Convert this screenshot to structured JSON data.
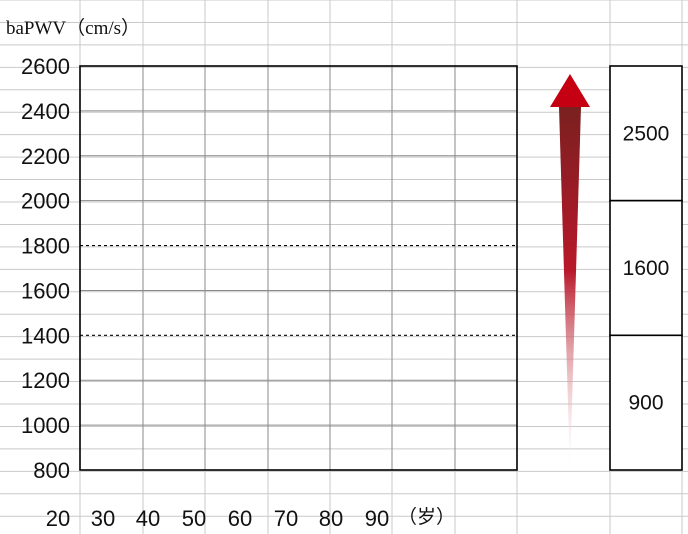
{
  "chart_data": {
    "type": "table",
    "y_axis_label": "baPWV（cm/s）",
    "x_axis_unit": "（岁）",
    "y_ticks": [
      2600,
      2400,
      2200,
      2000,
      1800,
      1600,
      1400,
      1200,
      1000,
      800
    ],
    "x_ticks": [
      20,
      30,
      40,
      50,
      60,
      70,
      80,
      90
    ],
    "ylim": [
      800,
      2600
    ],
    "dashed_reference_lines": [
      1800,
      1400
    ],
    "arrow": {
      "from": 800,
      "to": 2600,
      "direction": "up",
      "color_top": "#c40012"
    },
    "range_boxes": [
      {
        "label": "2500",
        "from": 2000,
        "to": 2600
      },
      {
        "label": "1600",
        "from": 1400,
        "to": 2000
      },
      {
        "label": "900",
        "from": 800,
        "to": 1400
      }
    ]
  }
}
